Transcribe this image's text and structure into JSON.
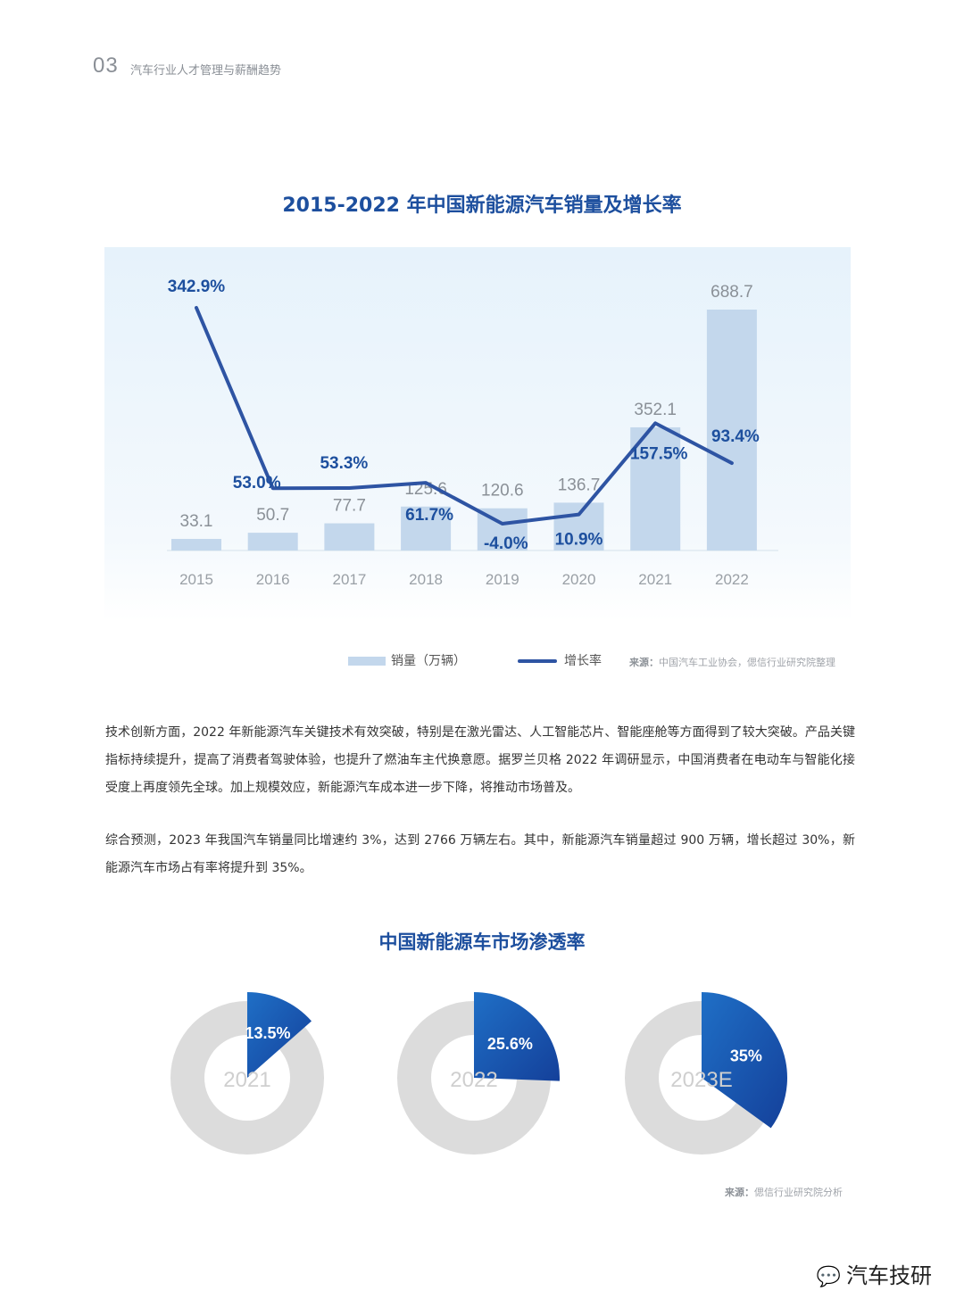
{
  "header": {
    "section_number": "03",
    "section_title": "汽车行业人才管理与薪酬趋势"
  },
  "chart_data": [
    {
      "type": "bar",
      "title": "2015-2022 年中国新能源汽车销量及增长率",
      "categories": [
        "2015",
        "2016",
        "2017",
        "2018",
        "2019",
        "2020",
        "2021",
        "2022"
      ],
      "series": [
        {
          "name": "销量（万辆）",
          "type": "bar",
          "values": [
            33.1,
            50.7,
            77.7,
            125.6,
            120.6,
            136.7,
            352.1,
            688.7
          ]
        },
        {
          "name": "增长率",
          "type": "line",
          "values": [
            342.9,
            53.0,
            53.3,
            61.7,
            -4.0,
            10.9,
            157.5,
            93.4
          ],
          "labels": [
            "342.9%",
            "53.0%",
            "53.3%",
            "61.7%",
            "-4.0%",
            "10.9%",
            "157.5%",
            "93.4%"
          ]
        }
      ],
      "bar_labels": [
        "33.1",
        "50.7",
        "77.7",
        "125.6",
        "120.6",
        "136.7",
        "352.1",
        "688.7"
      ],
      "legend_placement": "bottom",
      "source": {
        "label": "来源：",
        "text": "中国汽车工业协会，偲信行业研究院整理"
      },
      "colors": {
        "bar": "#c3d7ec",
        "line": "#2e54a3",
        "bar_label": "#8a9097",
        "line_label": "#1d4f9e",
        "tick": "#9aa0a6"
      }
    },
    {
      "type": "pie",
      "title": "中国新能源车市场渗透率",
      "categories": [
        "2021",
        "2022",
        "2023E"
      ],
      "values": [
        13.5,
        25.6,
        35
      ],
      "labels": [
        "13.5%",
        "25.6%",
        "35%"
      ],
      "source": {
        "label": "来源：",
        "text": "偲信行业研究院分析"
      },
      "colors": {
        "ring": "#dcdcdc",
        "slice_light": "#1f6fc6",
        "slice_dark": "#14409a",
        "center_text": "#cfcfcf"
      }
    }
  ],
  "paragraphs": [
    "技术创新方面，2022 年新能源汽车关键技术有效突破，特别是在激光雷达、人工智能芯片、智能座舱等方面得到了较大突破。产品关键指标持续提升，提高了消费者驾驶体验，也提升了燃油车主代换意愿。据罗兰贝格 2022 年调研显示，中国消费者在电动车与智能化接受度上再度领先全球。加上规模效应，新能源汽车成本进一步下降，将推动市场普及。",
    "综合预测，2023 年我国汽车销量同比增速约 3%，达到 2766 万辆左右。其中，新能源汽车销量超过 900 万辆，增长超过 30%，新能源汽车市场占有率将提升到 35%。"
  ],
  "watermark": "汽车技研"
}
